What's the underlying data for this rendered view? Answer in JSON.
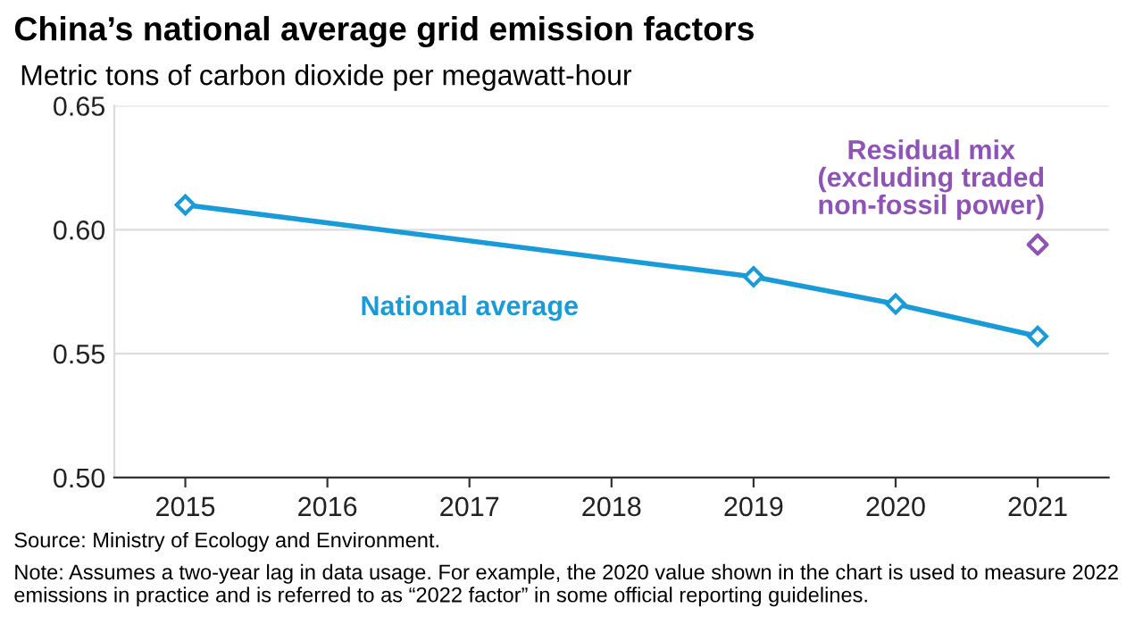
{
  "chart_data": {
    "type": "line",
    "title": "China’s national average grid emission factors",
    "ylabel": "Metric tons of carbon dioxide per megawatt-hour",
    "series": [
      {
        "name": "National average",
        "color": "#1a9bd7",
        "x": [
          2015,
          2019,
          2020,
          2021
        ],
        "values": [
          0.61,
          0.581,
          0.57,
          0.557
        ]
      },
      {
        "name": "Residual mix\n(excluding traded\nnon-fossil power)",
        "type": "scatter",
        "color": "#8e54b5",
        "x": [
          2021
        ],
        "values": [
          0.594
        ]
      }
    ],
    "xlim": [
      2014.5,
      2021.5
    ],
    "xticks": [
      2015,
      2016,
      2017,
      2018,
      2019,
      2020,
      2021
    ],
    "ylim": [
      0.5,
      0.65
    ],
    "yticks": [
      {
        "value": 0.5,
        "label": "0.50"
      },
      0.55,
      {
        "value": 0.6,
        "label": "0.60"
      },
      0.65
    ],
    "grid": "y",
    "legend": false,
    "marker": "diamond",
    "line_style": "solid",
    "annotations": [
      "Source: Ministry of Ecology and Environment.",
      "Note: Assumes a two-year lag in data usage. For example, the 2020 value shown in the chart is used to measure 2022 emissions in practice and is referred to as “2022 factor” in some official reporting guidelines."
    ]
  }
}
